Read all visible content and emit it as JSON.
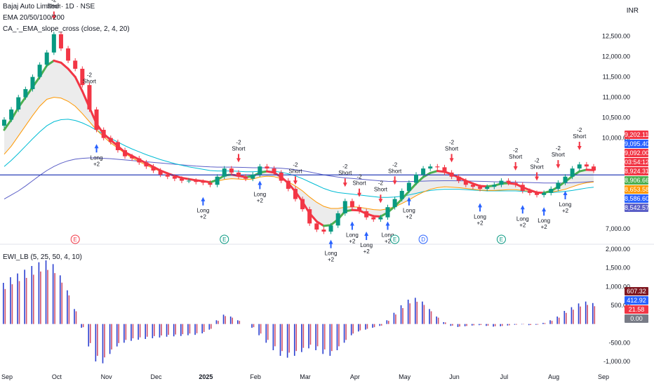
{
  "header": {
    "title": "Bajaj Auto Limited · 1D · NSE",
    "line2": "EMA 20/50/100/200",
    "line3": "CA_-_EMA_slope_cross (close, 2, 4, 20)",
    "currency": "INR",
    "indicator": "EWI_LB (5, 25, 50, 4, 10)"
  },
  "chart_data": {
    "type": "candlestick",
    "x_labels": [
      "Sep",
      "Oct",
      "Nov",
      "Dec",
      "2025",
      "Feb",
      "Mar",
      "Apr",
      "May",
      "Jun",
      "Jul",
      "Aug",
      "Sep"
    ],
    "price_axis": [
      "12,500.00",
      "12,000.00",
      "11,500.00",
      "11,000.00",
      "10,500.00",
      "10,000.00",
      "7,000.00"
    ],
    "indicator_axis": [
      "2,000.00",
      "1,500.00",
      "1,000.00",
      "500.00",
      "-500.00",
      "-1,000.00"
    ],
    "horizontal_line": 9092,
    "price_range": [
      7000,
      12700
    ],
    "close_series": [
      10450,
      10700,
      11000,
      11200,
      11500,
      11800,
      12100,
      12550,
      12200,
      11900,
      11700,
      11300,
      10700,
      10200,
      10000,
      9900,
      9700,
      9550,
      9500,
      9400,
      9300,
      9200,
      9100,
      9050,
      9000,
      8950,
      8950,
      8920,
      8900,
      8850,
      9050,
      9250,
      9150,
      9050,
      9000,
      9100,
      9300,
      9250,
      9150,
      8950,
      8750,
      8500,
      8250,
      7900,
      7750,
      7700,
      7850,
      8150,
      8450,
      8300,
      8200,
      8050,
      8000,
      8050,
      8300,
      8500,
      8700,
      8900,
      9100,
      9250,
      9300,
      9280,
      9150,
      9050,
      8950,
      8850,
      8800,
      8750,
      8800,
      8850,
      8950,
      8900,
      8850,
      8700,
      8650,
      8600,
      8650,
      8750,
      8900,
      9050,
      9250,
      9350,
      9300,
      9200
    ],
    "ema_fast": [
      10200,
      10450,
      10750,
      11000,
      11250,
      11500,
      11780,
      11900,
      11850,
      11700,
      11500,
      11150,
      10750,
      10350,
      10100,
      9950,
      9800,
      9650,
      9560,
      9470,
      9380,
      9290,
      9200,
      9130,
      9070,
      9020,
      8990,
      8960,
      8940,
      8910,
      8970,
      9080,
      9100,
      9070,
      9040,
      9060,
      9150,
      9180,
      9150,
      9040,
      8890,
      8680,
      8430,
      8150,
      7950,
      7840,
      7860,
      8000,
      8200,
      8230,
      8220,
      8140,
      8080,
      8070,
      8170,
      8320,
      8500,
      8690,
      8880,
      9040,
      9140,
      9190,
      9170,
      9110,
      9030,
      8950,
      8880,
      8820,
      8810,
      8830,
      8880,
      8890,
      8870,
      8790,
      8720,
      8660,
      8650,
      8700,
      8800,
      8930,
      9060,
      9180,
      9220,
      9210
    ],
    "ema_mid": [
      9600,
      9800,
      10050,
      10300,
      10550,
      10780,
      10950,
      11000,
      10980,
      10900,
      10780,
      10600,
      10400,
      10200,
      10030,
      9880,
      9750,
      9620,
      9510,
      9420,
      9330,
      9250,
      9180,
      9120,
      9070,
      9030,
      9000,
      8970,
      8950,
      8930,
      8940,
      8980,
      9000,
      8990,
      8980,
      8990,
      9040,
      9060,
      9050,
      9000,
      8920,
      8820,
      8700,
      8550,
      8420,
      8320,
      8270,
      8270,
      8300,
      8310,
      8300,
      8270,
      8240,
      8230,
      8260,
      8310,
      8390,
      8480,
      8580,
      8670,
      8740,
      8780,
      8800,
      8790,
      8780,
      8760,
      8740,
      8720,
      8710,
      8710,
      8720,
      8730,
      8730,
      8710,
      8690,
      8670,
      8660,
      8670,
      8700,
      8740,
      8800,
      8860,
      8900,
      8920
    ],
    "ema_slow": [
      9300,
      9450,
      9620,
      9800,
      9980,
      10150,
      10300,
      10400,
      10450,
      10460,
      10430,
      10370,
      10290,
      10190,
      10090,
      9990,
      9900,
      9810,
      9730,
      9660,
      9590,
      9530,
      9470,
      9420,
      9370,
      9330,
      9290,
      9260,
      9230,
      9200,
      9190,
      9190,
      9190,
      9180,
      9170,
      9170,
      9180,
      9190,
      9180,
      9160,
      9120,
      9070,
      9000,
      8920,
      8840,
      8760,
      8700,
      8660,
      8640,
      8620,
      8600,
      8580,
      8560,
      8540,
      8540,
      8550,
      8570,
      8600,
      8640,
      8680,
      8710,
      8730,
      8740,
      8740,
      8740,
      8730,
      8720,
      8710,
      8700,
      8700,
      8700,
      8700,
      8700,
      8690,
      8680,
      8670,
      8660,
      8660,
      8670,
      8690,
      8710,
      8740,
      8770,
      8790
    ],
    "ema_long": [
      8500,
      8600,
      8700,
      8820,
      8950,
      9080,
      9200,
      9300,
      9380,
      9440,
      9480,
      9500,
      9510,
      9510,
      9500,
      9490,
      9475,
      9460,
      9445,
      9430,
      9415,
      9400,
      9385,
      9370,
      9355,
      9340,
      9325,
      9310,
      9300,
      9290,
      9285,
      9285,
      9285,
      9280,
      9275,
      9270,
      9270,
      9270,
      9265,
      9255,
      9240,
      9220,
      9195,
      9165,
      9130,
      9095,
      9065,
      9040,
      9020,
      9005,
      8990,
      8975,
      8960,
      8945,
      8935,
      8930,
      8928,
      8930,
      8935,
      8940,
      8945,
      8948,
      8950,
      8950,
      8948,
      8945,
      8940,
      8935,
      8930,
      8925,
      8920,
      8918,
      8915,
      8910,
      8905,
      8900,
      8895,
      8893,
      8893,
      8895,
      8900,
      8910,
      8920,
      8930
    ],
    "indicator_series": [
      1100,
      1250,
      1350,
      1450,
      1550,
      1650,
      1700,
      1600,
      1300,
      900,
      400,
      -100,
      -600,
      -1000,
      -1050,
      -800,
      -600,
      -500,
      -450,
      -420,
      -400,
      -380,
      -360,
      -340,
      -330,
      -320,
      -300,
      -290,
      -250,
      -150,
      100,
      250,
      200,
      100,
      0,
      -100,
      -300,
      -500,
      -700,
      -850,
      -900,
      -850,
      -750,
      -650,
      -700,
      -800,
      -850,
      -700,
      -500,
      -300,
      -200,
      -150,
      -100,
      -50,
      100,
      300,
      500,
      650,
      700,
      600,
      400,
      200,
      50,
      -50,
      -80,
      -60,
      -40,
      -30,
      -50,
      -70,
      -60,
      -40,
      -20,
      -10,
      -30,
      -20,
      30,
      100,
      200,
      350,
      450,
      550,
      600,
      560
    ],
    "signals": [
      {
        "label": "-2\nShort",
        "i": 7,
        "dir": "short"
      },
      {
        "label": "-2\nShort",
        "i": 12,
        "dir": "short"
      },
      {
        "label": "Long\n+2",
        "i": 13,
        "dir": "long"
      },
      {
        "label": "Long\n+2",
        "i": 28,
        "dir": "long"
      },
      {
        "label": "-2\nShort",
        "i": 33,
        "dir": "short"
      },
      {
        "label": "Long\n+2",
        "i": 36,
        "dir": "long"
      },
      {
        "label": "-2\nShort",
        "i": 41,
        "dir": "short"
      },
      {
        "label": "Long\n+2",
        "i": 46,
        "dir": "long"
      },
      {
        "label": "-2\nShort",
        "i": 48,
        "dir": "short"
      },
      {
        "label": "Long\n+2",
        "i": 49,
        "dir": "long"
      },
      {
        "label": "-2\nShort",
        "i": 50,
        "dir": "short"
      },
      {
        "label": "Long\n+2",
        "i": 51,
        "dir": "long"
      },
      {
        "label": "-2\nShort",
        "i": 53,
        "dir": "short"
      },
      {
        "label": "Long\n+2",
        "i": 54,
        "dir": "long"
      },
      {
        "label": "-2\nShort",
        "i": 55,
        "dir": "short"
      },
      {
        "label": "Long\n+2",
        "i": 57,
        "dir": "long"
      },
      {
        "label": "-2\nShort",
        "i": 63,
        "dir": "short"
      },
      {
        "label": "Long\n+2",
        "i": 67,
        "dir": "long"
      },
      {
        "label": "-2\nShort",
        "i": 72,
        "dir": "short"
      },
      {
        "label": "Long\n+2",
        "i": 73,
        "dir": "long"
      },
      {
        "label": "-2\nShort",
        "i": 75,
        "dir": "short"
      },
      {
        "label": "Long\n+2",
        "i": 76,
        "dir": "long"
      },
      {
        "label": "-2\nShort",
        "i": 78,
        "dir": "short"
      },
      {
        "label": "Long\n+2",
        "i": 79,
        "dir": "long"
      },
      {
        "label": "-2\nShort",
        "i": 81,
        "dir": "short"
      }
    ],
    "events": [
      {
        "letter": "E",
        "i": 10,
        "color": "#f23645"
      },
      {
        "letter": "E",
        "i": 31,
        "color": "#089981"
      },
      {
        "letter": "E",
        "i": 55,
        "color": "#089981"
      },
      {
        "letter": "D",
        "i": 59,
        "color": "#2962ff"
      },
      {
        "letter": "E",
        "i": 70,
        "color": "#089981"
      }
    ]
  },
  "price_tags": [
    {
      "text": "9,202.11",
      "color": "#f23645"
    },
    {
      "text": "9,095.40",
      "color": "#2962ff"
    },
    {
      "text": "9,092.00",
      "color": "#f23645"
    },
    {
      "text": "03:54:12",
      "color": "#f23645"
    },
    {
      "text": "8,924.31",
      "color": "#f23645"
    },
    {
      "text": "8,906.66",
      "color": "#4caf50"
    },
    {
      "text": "8,653.58",
      "color": "#ff9800"
    },
    {
      "text": "8,586.60",
      "color": "#2962ff"
    },
    {
      "text": "8,542.57",
      "color": "#5b5fc7"
    }
  ],
  "indicator_tags": [
    {
      "text": "607.32",
      "color": "#801922"
    },
    {
      "text": "412.92",
      "color": "#2962ff"
    },
    {
      "text": "21.58",
      "color": "#f23645"
    },
    {
      "text": "0.00",
      "color": "#787b86"
    }
  ],
  "colors": {
    "up": "#089981",
    "down": "#f23645",
    "grid": "#f0f3fa",
    "ema_fast_up": "#4caf50",
    "ema_fast_down": "#f23645",
    "ema_mid": "#ff9800",
    "ema_slow": "#00bcd4",
    "ema_long": "#5b5fc7",
    "hline": "#2a3fb8",
    "fill": "#c8c8c8"
  }
}
